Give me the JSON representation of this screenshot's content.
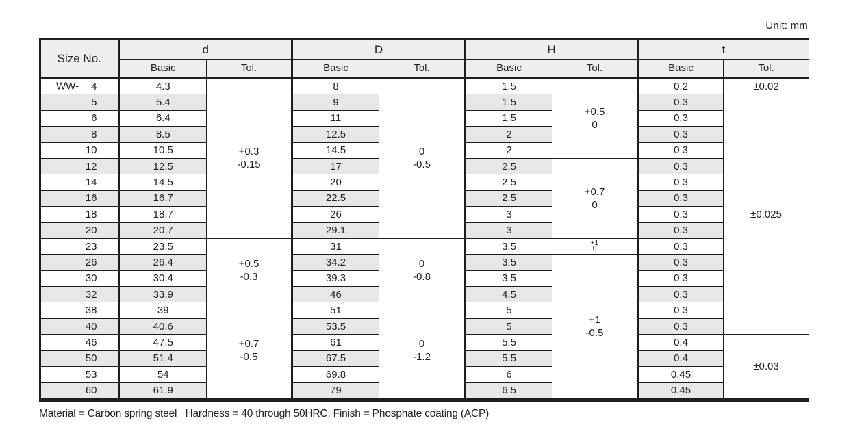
{
  "unit_label": "Unit: mm",
  "footer_note": "Material = Carbon spring steel   Hardness = 40 through 50HRC, Finish = Phosphate coating (ACP)",
  "colors": {
    "border": "#1d1d1d",
    "header_bg": "#eeeeee",
    "stripe_bg": "#e7e7e7",
    "text": "#222222"
  },
  "table": {
    "size_header": "Size No.",
    "size_prefix": "WW-",
    "groups": [
      "d",
      "D",
      "H",
      "t"
    ],
    "sub_headers": [
      "Basic",
      "Tol."
    ],
    "rows": [
      {
        "size": "4",
        "d": "4.3",
        "D": "8",
        "H": "1.5",
        "t": "0.2"
      },
      {
        "size": "5",
        "d": "5.4",
        "D": "9",
        "H": "1.5",
        "t": "0.3"
      },
      {
        "size": "6",
        "d": "6.4",
        "D": "11",
        "H": "1.5",
        "t": "0.3"
      },
      {
        "size": "8",
        "d": "8.5",
        "D": "12.5",
        "H": "2",
        "t": "0.3"
      },
      {
        "size": "10",
        "d": "10.5",
        "D": "14.5",
        "H": "2",
        "t": "0.3"
      },
      {
        "size": "12",
        "d": "12.5",
        "D": "17",
        "H": "2.5",
        "t": "0.3"
      },
      {
        "size": "14",
        "d": "14.5",
        "D": "20",
        "H": "2.5",
        "t": "0.3"
      },
      {
        "size": "16",
        "d": "16.7",
        "D": "22.5",
        "H": "2.5",
        "t": "0.3"
      },
      {
        "size": "18",
        "d": "18.7",
        "D": "26",
        "H": "3",
        "t": "0.3"
      },
      {
        "size": "20",
        "d": "20.7",
        "D": "29.1",
        "H": "3",
        "t": "0.3"
      },
      {
        "size": "23",
        "d": "23.5",
        "D": "31",
        "H": "3.5",
        "t": "0.3"
      },
      {
        "size": "26",
        "d": "26.4",
        "D": "34.2",
        "H": "3.5",
        "t": "0.3"
      },
      {
        "size": "30",
        "d": "30.4",
        "D": "39.3",
        "H": "3.5",
        "t": "0.3"
      },
      {
        "size": "32",
        "d": "33.9",
        "D": "46",
        "H": "4.5",
        "t": "0.3"
      },
      {
        "size": "38",
        "d": "39",
        "D": "51",
        "H": "5",
        "t": "0.3"
      },
      {
        "size": "40",
        "d": "40.6",
        "D": "53.5",
        "H": "5",
        "t": "0.3"
      },
      {
        "size": "46",
        "d": "47.5",
        "D": "61",
        "H": "5.5",
        "t": "0.4"
      },
      {
        "size": "50",
        "d": "51.4",
        "D": "67.5",
        "H": "5.5",
        "t": "0.4"
      },
      {
        "size": "53",
        "d": "54",
        "D": "69.8",
        "H": "6",
        "t": "0.45"
      },
      {
        "size": "60",
        "d": "61.9",
        "D": "79",
        "H": "6.5",
        "t": "0.45"
      }
    ],
    "tol_spans": {
      "d": [
        {
          "start": 0,
          "count": 10,
          "upper": "+0.3",
          "lower": "-0.15"
        },
        {
          "start": 10,
          "count": 4,
          "upper": "+0.5",
          "lower": "-0.3"
        },
        {
          "start": 14,
          "count": 6,
          "upper": "+0.7",
          "lower": "-0.5"
        }
      ],
      "D": [
        {
          "start": 0,
          "count": 10,
          "upper": "0",
          "lower": "-0.5"
        },
        {
          "start": 10,
          "count": 4,
          "upper": "0",
          "lower": "-0.8"
        },
        {
          "start": 14,
          "count": 6,
          "upper": "0",
          "lower": "-1.2"
        }
      ],
      "H": [
        {
          "start": 0,
          "count": 5,
          "upper": "+0.5",
          "lower": "0"
        },
        {
          "start": 5,
          "count": 5,
          "upper": "+0.7",
          "lower": "0"
        },
        {
          "start": 10,
          "count": 1,
          "upper": "+1",
          "lower": "0",
          "small": true
        },
        {
          "start": 11,
          "count": 9,
          "upper": "+1",
          "lower": "-0.5"
        }
      ],
      "t": [
        {
          "start": 0,
          "count": 1,
          "text": "±0.02"
        },
        {
          "start": 1,
          "count": 15,
          "text": "±0.025"
        },
        {
          "start": 16,
          "count": 4,
          "text": "±0.03"
        }
      ]
    }
  }
}
